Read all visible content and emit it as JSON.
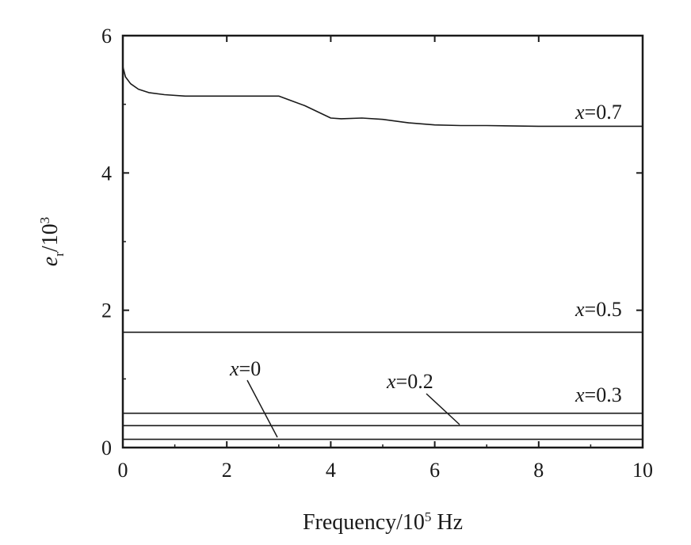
{
  "chart_data": {
    "type": "line",
    "xlabel": {
      "text": "Frequency/10",
      "sup": "5",
      "unit": " Hz"
    },
    "ylabel": {
      "var": "e",
      "sub": "r",
      "rest": "/10",
      "sup": "3"
    },
    "xlim": [
      0,
      10
    ],
    "ylim": [
      0,
      6
    ],
    "xticks": [
      0,
      2,
      4,
      6,
      8,
      10
    ],
    "yticks": [
      0,
      2,
      4,
      6
    ],
    "grid": false,
    "series": [
      {
        "name": "x=0.7",
        "label": {
          "var": "x",
          "rest": "=0.7"
        },
        "x": [
          0,
          0.05,
          0.15,
          0.3,
          0.5,
          0.8,
          1.2,
          2.0,
          3.0,
          3.5,
          4.0,
          4.2,
          4.6,
          5.0,
          5.5,
          6.0,
          6.5,
          7.0,
          8.0,
          9.0,
          10.0
        ],
        "y": [
          5.55,
          5.4,
          5.3,
          5.22,
          5.17,
          5.14,
          5.12,
          5.12,
          5.12,
          4.98,
          4.8,
          4.79,
          4.8,
          4.78,
          4.73,
          4.7,
          4.69,
          4.69,
          4.68,
          4.68,
          4.68
        ]
      },
      {
        "name": "x=0.5",
        "label": {
          "var": "x",
          "rest": "=0.5"
        },
        "x": [
          0,
          10
        ],
        "y": [
          1.68,
          1.68
        ]
      },
      {
        "name": "x=0.3",
        "label": {
          "var": "x",
          "rest": "=0.3"
        },
        "x": [
          0,
          10
        ],
        "y": [
          0.5,
          0.5
        ]
      },
      {
        "name": "x=0.2",
        "label": {
          "var": "x",
          "rest": "=0.2"
        },
        "x": [
          0,
          10
        ],
        "y": [
          0.32,
          0.32
        ]
      },
      {
        "name": "x=0",
        "label": {
          "var": "x",
          "rest": "=0"
        },
        "x": [
          0,
          10
        ],
        "y": [
          0.12,
          0.12
        ]
      }
    ]
  }
}
